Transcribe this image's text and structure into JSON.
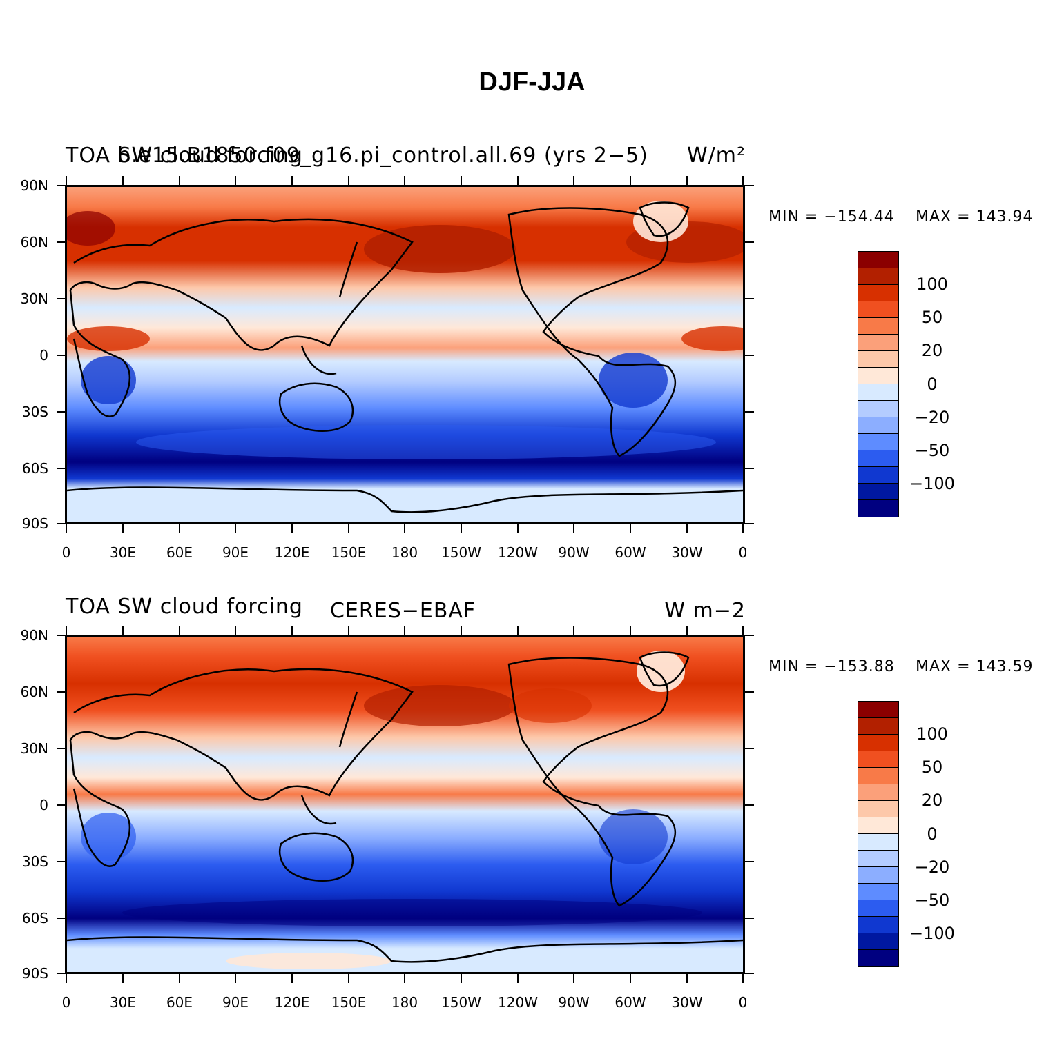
{
  "figure": {
    "title": "DJF-JJA"
  },
  "panels": [
    {
      "left_label": "TOA SW cloud forcing",
      "center_label": "b.e15.B1850.f09_g16.pi_control.all.69 (yrs 2−5)",
      "right_label": "W/m²",
      "min_label": "MIN = −154.44",
      "max_label": "MAX = 143.94"
    },
    {
      "left_label": "TOA SW cloud forcing",
      "center_label": "CERES−EBAF",
      "right_label": "W m−2",
      "min_label": "MIN = −153.88",
      "max_label": "MAX = 143.59"
    }
  ],
  "axes": {
    "lat_ticks": [
      "90N",
      "60N",
      "30N",
      "0",
      "30S",
      "60S",
      "90S"
    ],
    "lon_ticks": [
      "0",
      "30E",
      "60E",
      "90E",
      "120E",
      "150E",
      "180",
      "150W",
      "120W",
      "90W",
      "60W",
      "30W",
      "0"
    ]
  },
  "colorbar": {
    "labels": [
      "100",
      "50",
      "20",
      "0",
      "−20",
      "−50",
      "−100"
    ],
    "colors": [
      "#8B0000",
      "#B22000",
      "#D73000",
      "#F05020",
      "#F87A48",
      "#FBA07A",
      "#FDC8AA",
      "#FFE8D8",
      "#D8EAFF",
      "#B4CCFF",
      "#8CAEFF",
      "#5E8CFF",
      "#2C5CF0",
      "#1038D0",
      "#0018A0",
      "#000080"
    ]
  },
  "map_legend": {
    "land_outline": "coastline",
    "colors": {
      "ocean_tropics_pos": "#F05020",
      "ocean_southern": "#0018A0"
    }
  }
}
